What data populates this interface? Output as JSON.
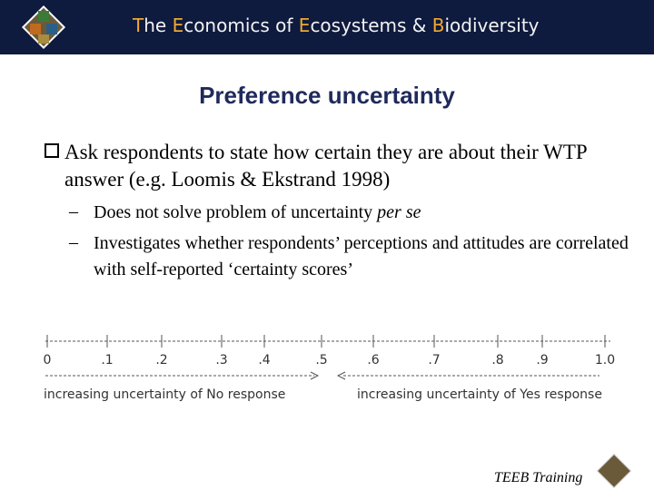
{
  "header": {
    "title_parts": [
      "T",
      "he ",
      "E",
      "conomics of ",
      "E",
      "cosystems & ",
      "B",
      "iodiversity"
    ]
  },
  "slide": {
    "title": "Preference uncertainty",
    "bullet": "Ask respondents to state how certain they are about their WTP answer (e.g. Loomis & Ekstrand 1998)",
    "sub_bullets": [
      {
        "text": "Does not solve problem of uncertainty ",
        "italic": "per se"
      },
      {
        "text": "Investigates whether respondents’ perceptions and attitudes are correlated with self-reported ‘certainty scores’"
      }
    ]
  },
  "scale": {
    "labels": [
      "0",
      ".1",
      ".2",
      ".3",
      ".4",
      ".5",
      ".6",
      ".7",
      ".8",
      ".9",
      "1.0"
    ],
    "left_caption": "increasing uncertainty of No response",
    "right_caption": "increasing uncertainty of Yes response"
  },
  "footer": {
    "text": "TEEB Training"
  }
}
